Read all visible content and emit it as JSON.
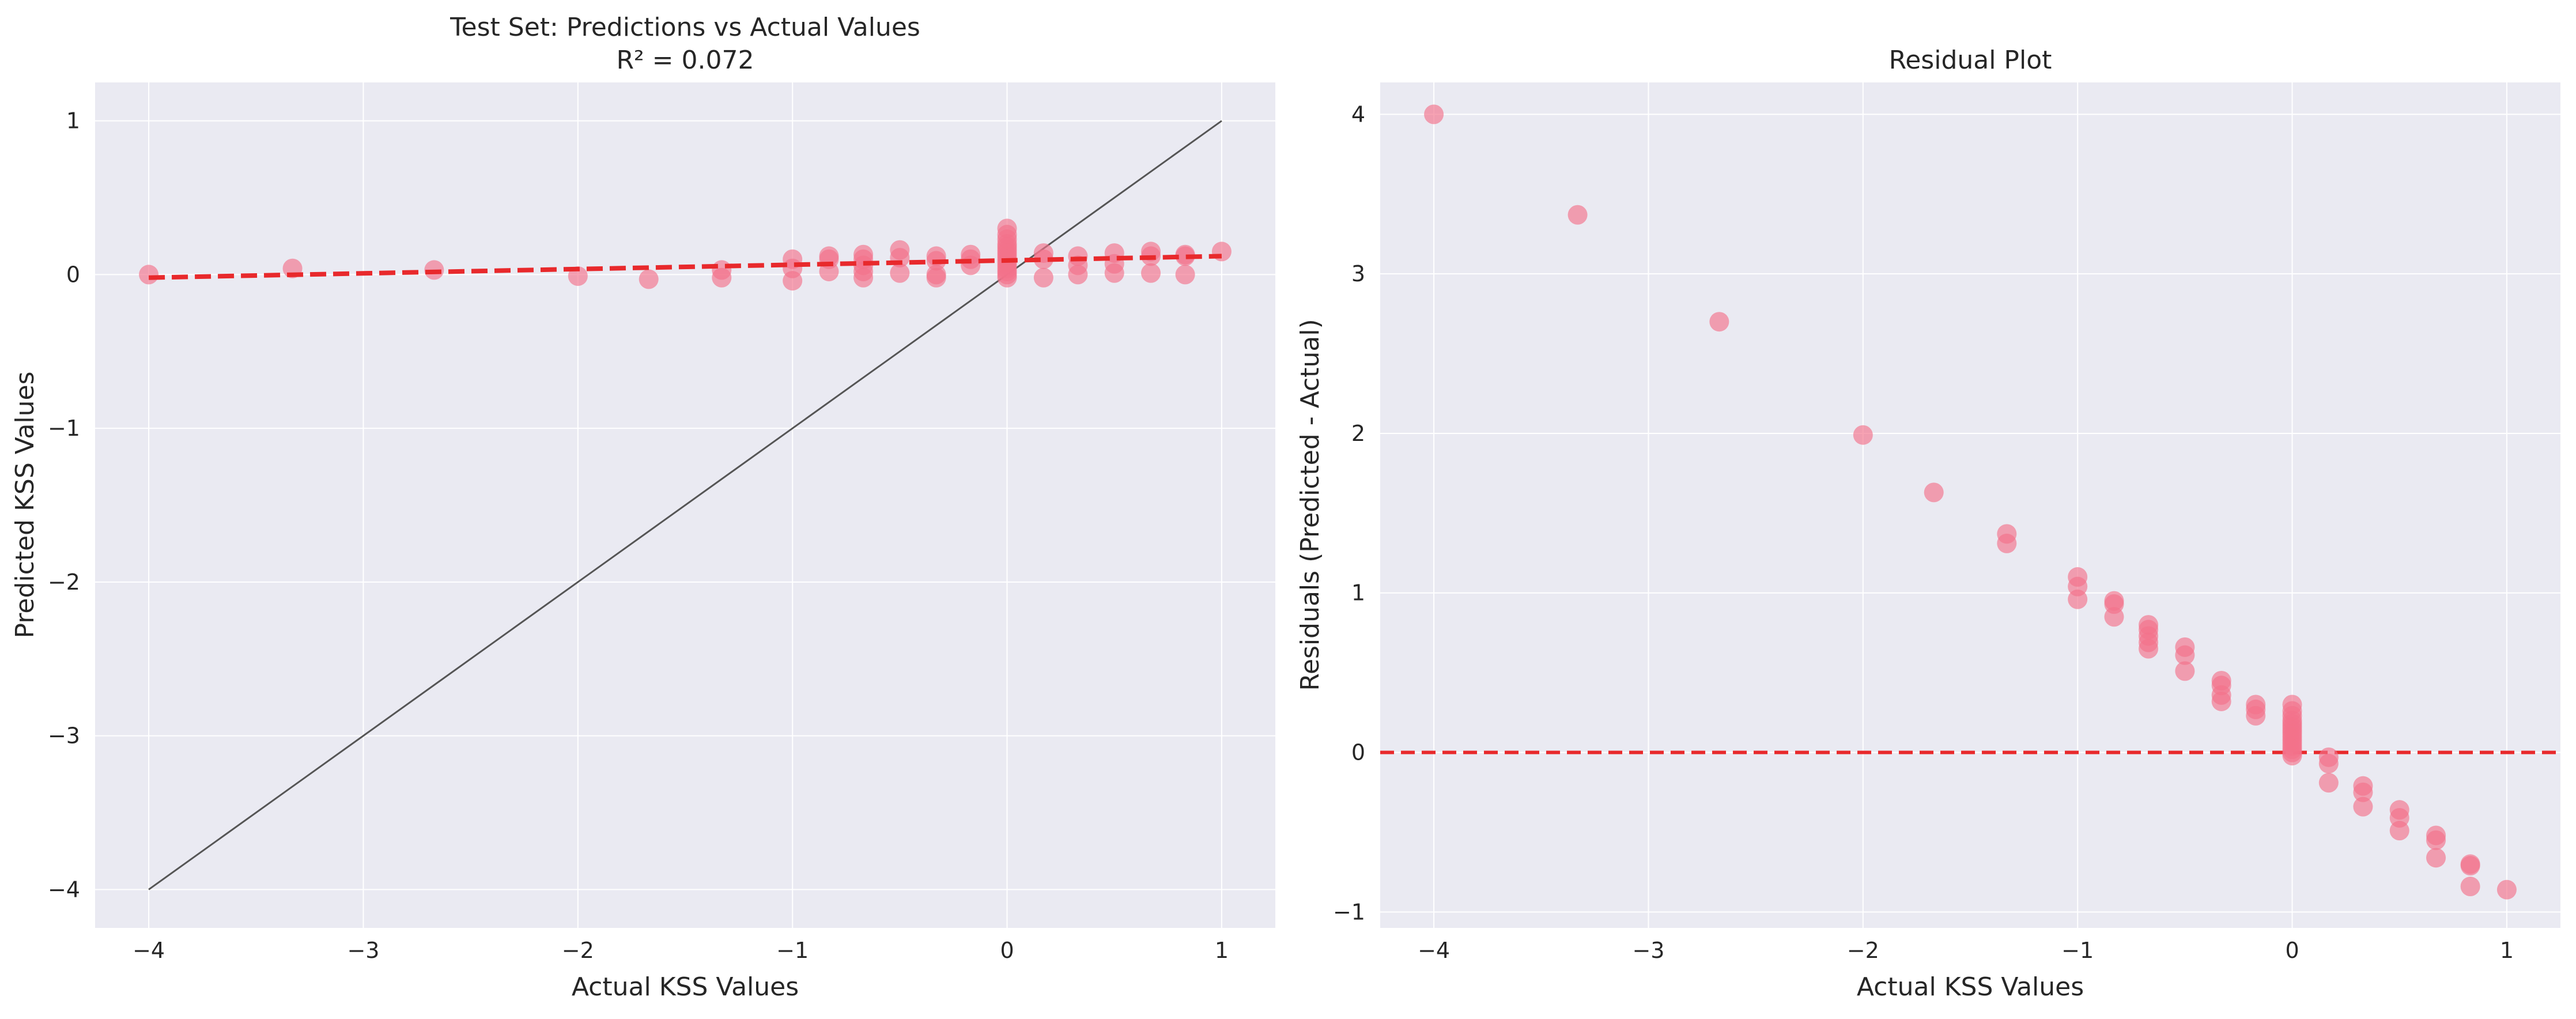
{
  "chart_data": [
    {
      "type": "scatter",
      "title": "Test Set: Predictions vs Actual Values",
      "subtitle": "R² = 0.072",
      "xlabel": "Actual KSS Values",
      "ylabel": "Predicted KSS Values",
      "xlim": [
        -4.25,
        1.25
      ],
      "ylim": [
        -4.25,
        1.25
      ],
      "xticks": [
        -4,
        -3,
        -2,
        -1,
        0,
        1
      ],
      "yticks": [
        -4,
        -3,
        -2,
        -1,
        0,
        1
      ],
      "tick_labels": [
        "−4",
        "−3",
        "−2",
        "−1",
        "0",
        "1"
      ],
      "grid": true,
      "colors": {
        "points": "#f3718a",
        "fit_line": "#e8292c",
        "identity_line": "#555555",
        "background": "#eaeaf2"
      },
      "identity_line": {
        "x": [
          -4,
          1
        ],
        "y": [
          -4,
          1
        ]
      },
      "fit_line": {
        "x": [
          -4,
          1
        ],
        "y": [
          -0.02,
          0.12
        ]
      },
      "series": [
        {
          "points": [
            [
              -4,
              0.0
            ],
            [
              -3.33,
              0.04
            ],
            [
              -2.67,
              0.03
            ],
            [
              -2,
              -0.01
            ],
            [
              -1.67,
              -0.03
            ],
            [
              -1.33,
              0.03
            ],
            [
              -1.33,
              -0.02
            ],
            [
              -1,
              0.1
            ],
            [
              -1,
              0.04
            ],
            [
              -1,
              -0.04
            ],
            [
              -0.83,
              0.12
            ],
            [
              -0.83,
              0.1
            ],
            [
              -0.83,
              0.02
            ],
            [
              -0.67,
              0.13
            ],
            [
              -0.67,
              0.1
            ],
            [
              -0.67,
              0.06
            ],
            [
              -0.67,
              0.02
            ],
            [
              -0.67,
              -0.02
            ],
            [
              -0.5,
              0.16
            ],
            [
              -0.5,
              0.11
            ],
            [
              -0.5,
              0.01
            ],
            [
              -0.33,
              0.12
            ],
            [
              -0.33,
              0.09
            ],
            [
              -0.33,
              0.0
            ],
            [
              -0.33,
              -0.02
            ],
            [
              -0.17,
              0.13
            ],
            [
              -0.17,
              0.1
            ],
            [
              -0.17,
              0.06
            ],
            [
              0,
              0.3
            ],
            [
              0,
              0.26
            ],
            [
              0,
              0.23
            ],
            [
              0,
              0.2
            ],
            [
              0,
              0.18
            ],
            [
              0,
              0.16
            ],
            [
              0,
              0.14
            ],
            [
              0,
              0.12
            ],
            [
              0,
              0.1
            ],
            [
              0,
              0.08
            ],
            [
              0,
              0.06
            ],
            [
              0,
              0.04
            ],
            [
              0,
              0.02
            ],
            [
              0,
              0.0
            ],
            [
              0,
              -0.02
            ],
            [
              0.17,
              0.14
            ],
            [
              0.17,
              0.1
            ],
            [
              0.17,
              -0.02
            ],
            [
              0.33,
              0.12
            ],
            [
              0.33,
              0.06
            ],
            [
              0.33,
              0.0
            ],
            [
              0.5,
              0.14
            ],
            [
              0.5,
              0.07
            ],
            [
              0.5,
              0.01
            ],
            [
              0.67,
              0.15
            ],
            [
              0.67,
              0.12
            ],
            [
              0.67,
              0.01
            ],
            [
              0.83,
              0.13
            ],
            [
              0.83,
              0.12
            ],
            [
              0.83,
              0.0
            ],
            [
              1,
              0.15
            ]
          ]
        }
      ]
    },
    {
      "type": "scatter",
      "title": "Residual Plot",
      "xlabel": "Actual KSS Values",
      "ylabel": "Residuals (Predicted - Actual)",
      "xlim": [
        -4.25,
        1.25
      ],
      "ylim": [
        -1.1,
        4.2
      ],
      "xticks": [
        -4,
        -3,
        -2,
        -1,
        0,
        1
      ],
      "yticks": [
        -1,
        0,
        1,
        2,
        3,
        4
      ],
      "tick_labels_x": [
        "−4",
        "−3",
        "−2",
        "−1",
        "0",
        "1"
      ],
      "tick_labels_y": [
        "−1",
        "0",
        "1",
        "2",
        "3",
        "4"
      ],
      "grid": true,
      "colors": {
        "points": "#f3718a",
        "zero_line": "#e8292c",
        "background": "#eaeaf2"
      },
      "zero_line": 0,
      "series": [
        {
          "points": [
            [
              -4,
              4.0
            ],
            [
              -3.33,
              3.37
            ],
            [
              -2.67,
              2.7
            ],
            [
              -2,
              1.99
            ],
            [
              -1.67,
              1.63
            ],
            [
              -1.33,
              1.37
            ],
            [
              -1.33,
              1.31
            ],
            [
              -1,
              1.1
            ],
            [
              -1,
              1.04
            ],
            [
              -1,
              0.96
            ],
            [
              -0.83,
              0.95
            ],
            [
              -0.83,
              0.93
            ],
            [
              -0.83,
              0.85
            ],
            [
              -0.67,
              0.8
            ],
            [
              -0.67,
              0.77
            ],
            [
              -0.67,
              0.73
            ],
            [
              -0.67,
              0.69
            ],
            [
              -0.67,
              0.65
            ],
            [
              -0.5,
              0.66
            ],
            [
              -0.5,
              0.61
            ],
            [
              -0.5,
              0.51
            ],
            [
              -0.33,
              0.45
            ],
            [
              -0.33,
              0.42
            ],
            [
              -0.33,
              0.36
            ],
            [
              -0.33,
              0.32
            ],
            [
              -0.17,
              0.3
            ],
            [
              -0.17,
              0.27
            ],
            [
              -0.17,
              0.23
            ],
            [
              0,
              0.3
            ],
            [
              0,
              0.26
            ],
            [
              0,
              0.23
            ],
            [
              0,
              0.2
            ],
            [
              0,
              0.18
            ],
            [
              0,
              0.16
            ],
            [
              0,
              0.14
            ],
            [
              0,
              0.12
            ],
            [
              0,
              0.1
            ],
            [
              0,
              0.08
            ],
            [
              0,
              0.06
            ],
            [
              0,
              0.04
            ],
            [
              0,
              0.02
            ],
            [
              0,
              0.0
            ],
            [
              0,
              -0.02
            ],
            [
              0.17,
              -0.03
            ],
            [
              0.17,
              -0.07
            ],
            [
              0.17,
              -0.19
            ],
            [
              0.33,
              -0.21
            ],
            [
              0.33,
              -0.25
            ],
            [
              0.33,
              -0.34
            ],
            [
              0.5,
              -0.36
            ],
            [
              0.5,
              -0.41
            ],
            [
              0.5,
              -0.49
            ],
            [
              0.67,
              -0.52
            ],
            [
              0.67,
              -0.55
            ],
            [
              0.67,
              -0.66
            ],
            [
              0.83,
              -0.7
            ],
            [
              0.83,
              -0.71
            ],
            [
              0.83,
              -0.84
            ],
            [
              1,
              -0.86
            ]
          ]
        }
      ]
    }
  ]
}
